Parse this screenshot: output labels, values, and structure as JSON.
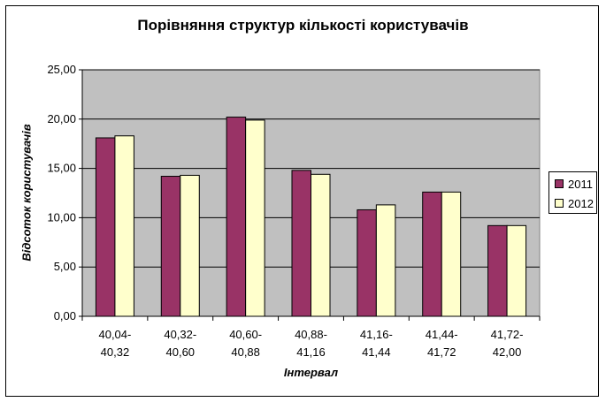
{
  "chart_data": {
    "type": "bar",
    "title": "Порівняння структур кількості користувачів",
    "xlabel": "Інтервал",
    "ylabel": "Відсоток користувачів",
    "categories": [
      [
        "40,04-",
        "40,32"
      ],
      [
        "40,32-",
        "40,60"
      ],
      [
        "40,60-",
        "40,88"
      ],
      [
        "40,88-",
        "41,16"
      ],
      [
        "41,16-",
        "41,44"
      ],
      [
        "41,44-",
        "41,72"
      ],
      [
        "41,72-",
        "42,00"
      ]
    ],
    "series": [
      {
        "name": "2011",
        "color": "#993366",
        "values": [
          18.1,
          14.2,
          20.2,
          14.8,
          10.8,
          12.6,
          9.2
        ]
      },
      {
        "name": "2012",
        "color": "#ffffcc",
        "values": [
          18.3,
          14.3,
          19.9,
          14.4,
          11.3,
          12.6,
          9.2
        ]
      }
    ],
    "ylim": [
      0,
      25
    ],
    "yticks": [
      "0,00",
      "5,00",
      "10,00",
      "15,00",
      "20,00",
      "25,00"
    ],
    "grid": true,
    "plot_background": "#c0c0c0",
    "legend_position": "right"
  }
}
